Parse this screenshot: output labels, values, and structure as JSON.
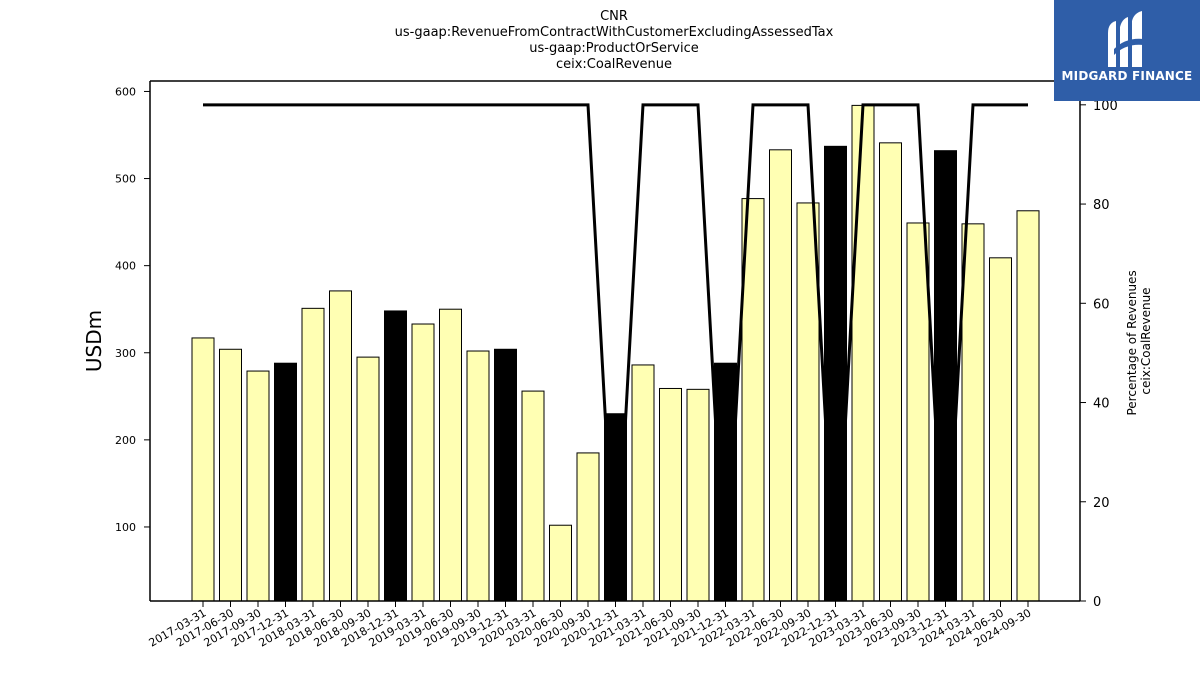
{
  "chart_data": {
    "type": "bar",
    "title_lines": [
      "CNR",
      "us-gaap:RevenueFromContractWithCustomerExcludingAssessedTax",
      "us-gaap:ProductOrService",
      "ceix:CoalRevenue"
    ],
    "ylabel": "USDm",
    "y2label_lines": [
      "Percentage of Revenues",
      "ceix:CoalRevenue"
    ],
    "categories": [
      "2017-03-31",
      "2017-06-30",
      "2017-09-30",
      "2017-12-31",
      "2018-03-31",
      "2018-06-30",
      "2018-09-30",
      "2018-12-31",
      "2019-03-31",
      "2019-06-30",
      "2019-09-30",
      "2019-12-31",
      "2020-03-31",
      "2020-06-30",
      "2020-09-30",
      "2020-12-31",
      "2021-03-31",
      "2021-06-30",
      "2021-09-30",
      "2021-12-31",
      "2022-03-31",
      "2022-06-30",
      "2022-09-30",
      "2022-12-31",
      "2023-03-31",
      "2023-06-30",
      "2023-09-30",
      "2023-12-31",
      "2024-03-31",
      "2024-06-30",
      "2024-09-30"
    ],
    "values": [
      317,
      304,
      279,
      288,
      351,
      371,
      295,
      348,
      333,
      350,
      302,
      304,
      256,
      102,
      185,
      230,
      286,
      259,
      258,
      288,
      477,
      533,
      472,
      537,
      584,
      541,
      449,
      532,
      448,
      409,
      463
    ],
    "highlight_quarter_end": "12-31",
    "bar_color": "#ffffb3",
    "highlight_color": "#000000",
    "ylim": [
      15,
      612
    ],
    "yticks": [
      100,
      200,
      300,
      400,
      500,
      600
    ],
    "percentage_series": {
      "values": [
        100,
        100,
        100,
        100,
        100,
        100,
        100,
        100,
        100,
        100,
        100,
        100,
        100,
        100,
        100,
        0,
        100,
        100,
        100,
        0,
        100,
        100,
        100,
        0,
        100,
        100,
        100,
        0,
        100,
        100,
        100
      ],
      "color": "#000000"
    },
    "y2lim": [
      0,
      104.8
    ],
    "y2ticks": [
      0,
      20,
      40,
      60,
      80,
      100
    ]
  },
  "logo": {
    "text": "MIDGARD FINANCE",
    "background": "#2f5ea8"
  }
}
